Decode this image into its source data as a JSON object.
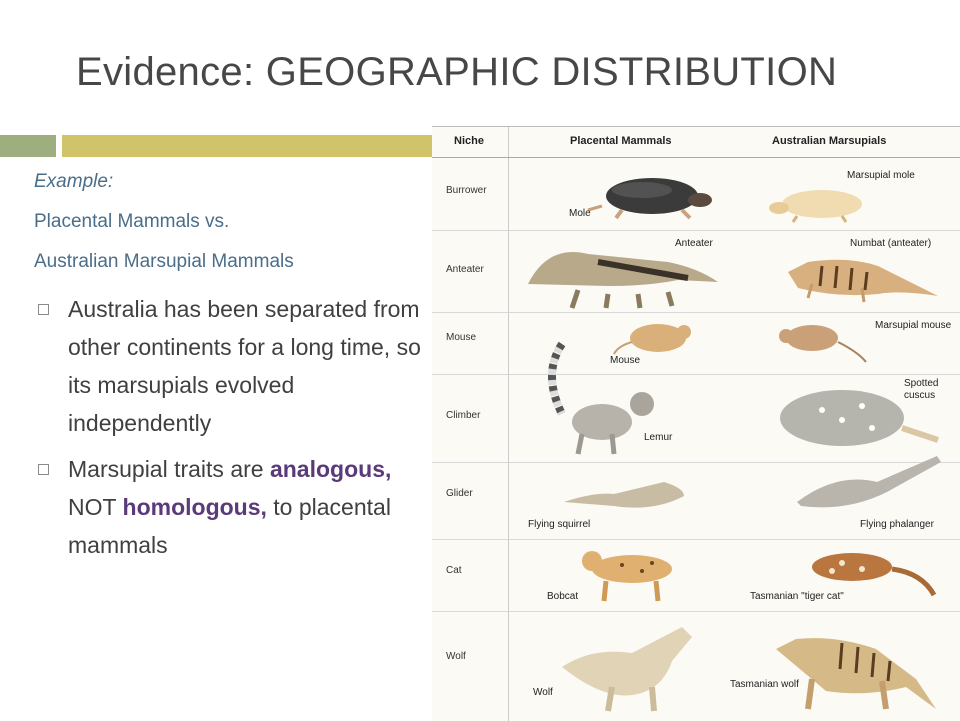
{
  "slide": {
    "title": "Evidence: GEOGRAPHIC DISTRIBUTION",
    "example_label": "Example:",
    "line1": "Placental Mammals vs.",
    "line2": "Australian Marsupial Mammals",
    "bullet1": "Australia has been separated from other continents for a long time, so its marsupials evolved independently",
    "bullet2": {
      "pre": "Marsupial traits are ",
      "analogous": "analogous,",
      "mid": " NOT ",
      "homologous": "homologous,",
      "post": " to placental mammals"
    },
    "colors": {
      "accent_green": "#9fae7f",
      "accent_gold": "#d1c36a",
      "subtitle_blue": "#4a6e8a",
      "highlight_purple": "#5b3a7a"
    }
  },
  "table": {
    "headers": {
      "niche": "Niche",
      "placental": "Placental Mammals",
      "marsupial": "Australian Marsupials"
    },
    "rows": [
      {
        "niche": "Burrower",
        "placental": "Mole",
        "marsupial": "Marsupial mole"
      },
      {
        "niche": "Anteater",
        "placental": "Anteater",
        "marsupial": "Numbat (anteater)"
      },
      {
        "niche": "Mouse",
        "placental": "Mouse",
        "marsupial": "Marsupial mouse"
      },
      {
        "niche": "Climber",
        "placental": "Lemur",
        "marsupial": "Spotted cuscus"
      },
      {
        "niche": "Glider",
        "placental": "Flying squirrel",
        "marsupial": "Flying phalanger"
      },
      {
        "niche": "Cat",
        "placental": "Bobcat",
        "marsupial": "Tasmanian \"tiger cat\""
      },
      {
        "niche": "Wolf",
        "placental": "Wolf",
        "marsupial": "Tasmanian wolf"
      }
    ]
  }
}
